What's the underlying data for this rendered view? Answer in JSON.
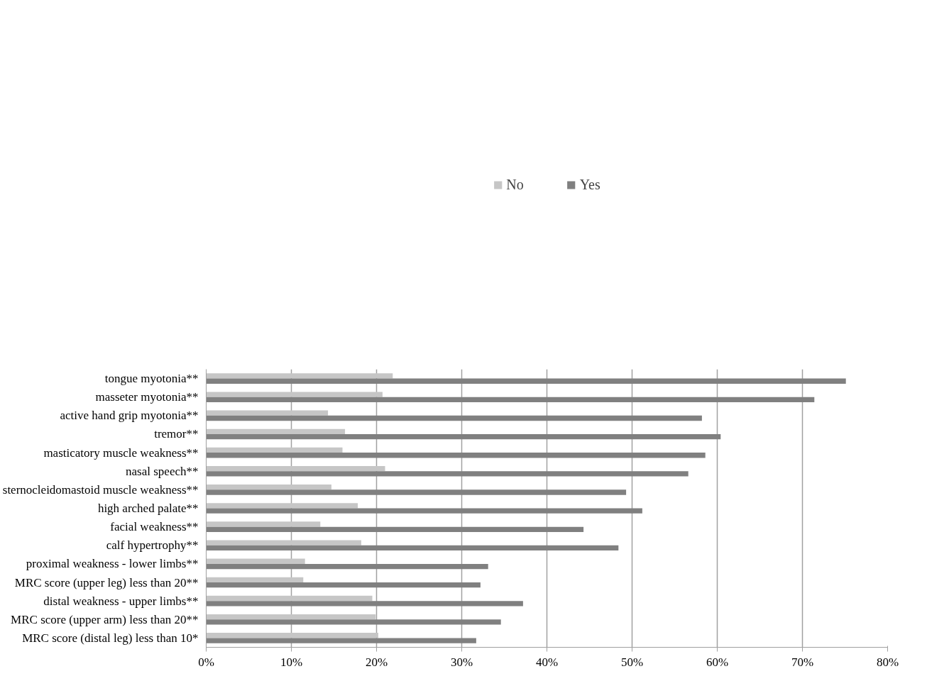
{
  "chart_data": {
    "type": "bar",
    "orientation": "horizontal",
    "categories": [
      "tongue myotonia**",
      "masseter myotonia**",
      "active hand grip myotonia**",
      "tremor**",
      "masticatory muscle weakness**",
      "nasal speech**",
      "sternocleidomastoid muscle weakness**",
      "high arched palate**",
      "facial weakness**",
      "calf hypertrophy**",
      "proximal weakness - lower limbs**",
      "MRC score (upper leg) less than 20**",
      "distal weakness - upper limbs**",
      "MRC score (upper arm) less than 20**",
      "MRC score (distal leg) less than 10*"
    ],
    "series": [
      {
        "name": "No",
        "color": "#c6c6c6",
        "values": [
          21.9,
          20.7,
          14.3,
          16.3,
          16.0,
          21.0,
          14.7,
          17.8,
          13.4,
          18.2,
          11.6,
          11.4,
          19.5,
          19.9,
          20.2
        ]
      },
      {
        "name": "Yes",
        "color": "#808080",
        "values": [
          75.1,
          71.4,
          58.2,
          60.4,
          58.6,
          56.6,
          49.3,
          51.2,
          44.3,
          48.4,
          33.1,
          32.2,
          37.2,
          34.6,
          31.7
        ]
      }
    ],
    "xlim": [
      0,
      80
    ],
    "xticks": [
      {
        "value": 0,
        "label": "0%"
      },
      {
        "value": 10,
        "label": "10%"
      },
      {
        "value": 20,
        "label": "20%"
      },
      {
        "value": 30,
        "label": "30%"
      },
      {
        "value": 40,
        "label": "40%"
      },
      {
        "value": 50,
        "label": "50%"
      },
      {
        "value": 60,
        "label": "60%"
      },
      {
        "value": 70,
        "label": "70%"
      },
      {
        "value": 80,
        "label": "80%"
      }
    ],
    "grid": "x",
    "legend": "top"
  }
}
